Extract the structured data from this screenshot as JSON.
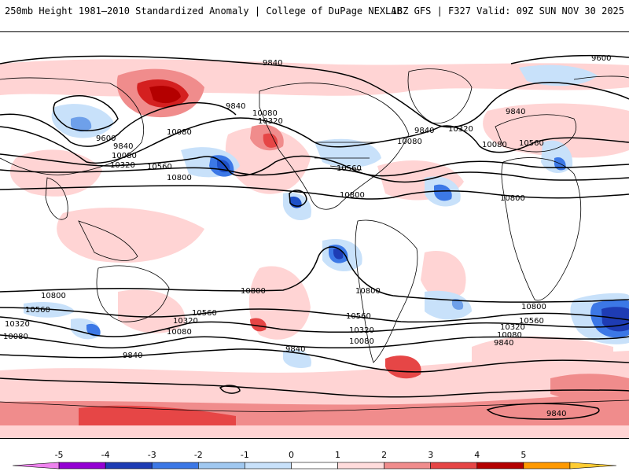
{
  "header": {
    "title": "250mb Height 1981–2010 Standardized Anomaly | College of DuPage NEXLAB",
    "run_info": "18Z GFS | F327 Valid: 09Z SUN NOV 30 2025"
  },
  "map": {
    "contour_labels": [
      "9600",
      "9840",
      "10080",
      "10320",
      "10560",
      "10800"
    ]
  },
  "colorbar": {
    "ticks": [
      "-5",
      "-4",
      "-3",
      "-2",
      "-1",
      "0",
      "1",
      "2",
      "3",
      "4",
      "5"
    ],
    "colors": [
      "#ee82ee",
      "#9400d3",
      "#1e3cb4",
      "#3c78e6",
      "#a0c8f0",
      "#c8e1fa",
      "#ffffff",
      "#ffdcdc",
      "#f08c8c",
      "#e64646",
      "#b40000",
      "#ff9900",
      "#ffcc33"
    ]
  }
}
